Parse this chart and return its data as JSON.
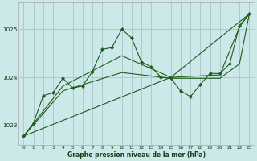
{
  "title": "Graphe pression niveau de la mer (hPa)",
  "xlabel_ticks": [
    "0",
    "1",
    "2",
    "3",
    "4",
    "5",
    "6",
    "7",
    "8",
    "9",
    "10",
    "11",
    "12",
    "13",
    "14",
    "15",
    "16",
    "17",
    "18",
    "19",
    "20",
    "21",
    "22",
    "23"
  ],
  "yticks": [
    1023,
    1024,
    1025
  ],
  "ylim": [
    1022.6,
    1025.55
  ],
  "xlim": [
    -0.5,
    23.5
  ],
  "bg_color": "#cce8e8",
  "grid_color": "#aacccc",
  "line_color": "#1e5c1e",
  "line1_x": [
    0,
    1,
    2,
    3,
    4,
    5,
    6,
    7,
    8,
    9,
    10,
    11,
    12,
    13,
    14,
    15,
    16,
    17,
    18,
    19,
    20,
    21,
    22,
    23
  ],
  "line1_y": [
    1022.78,
    1023.05,
    1023.62,
    1023.68,
    1023.98,
    1023.78,
    1023.82,
    1024.12,
    1024.58,
    1024.62,
    1025.0,
    1024.82,
    1024.32,
    1024.22,
    1024.0,
    1023.98,
    1023.72,
    1023.6,
    1023.85,
    1024.08,
    1024.08,
    1024.28,
    1025.08,
    1025.32
  ],
  "line2_x": [
    0,
    15,
    23
  ],
  "line2_y": [
    1022.78,
    1024.0,
    1025.32
  ],
  "line3_x": [
    0,
    4,
    10,
    15,
    20,
    22,
    23
  ],
  "line3_y": [
    1022.78,
    1023.82,
    1024.45,
    1024.0,
    1024.05,
    1025.05,
    1025.32
  ],
  "line4_x": [
    0,
    4,
    10,
    15,
    20,
    22,
    23
  ],
  "line4_y": [
    1022.78,
    1023.72,
    1024.1,
    1023.98,
    1023.98,
    1024.28,
    1025.32
  ]
}
